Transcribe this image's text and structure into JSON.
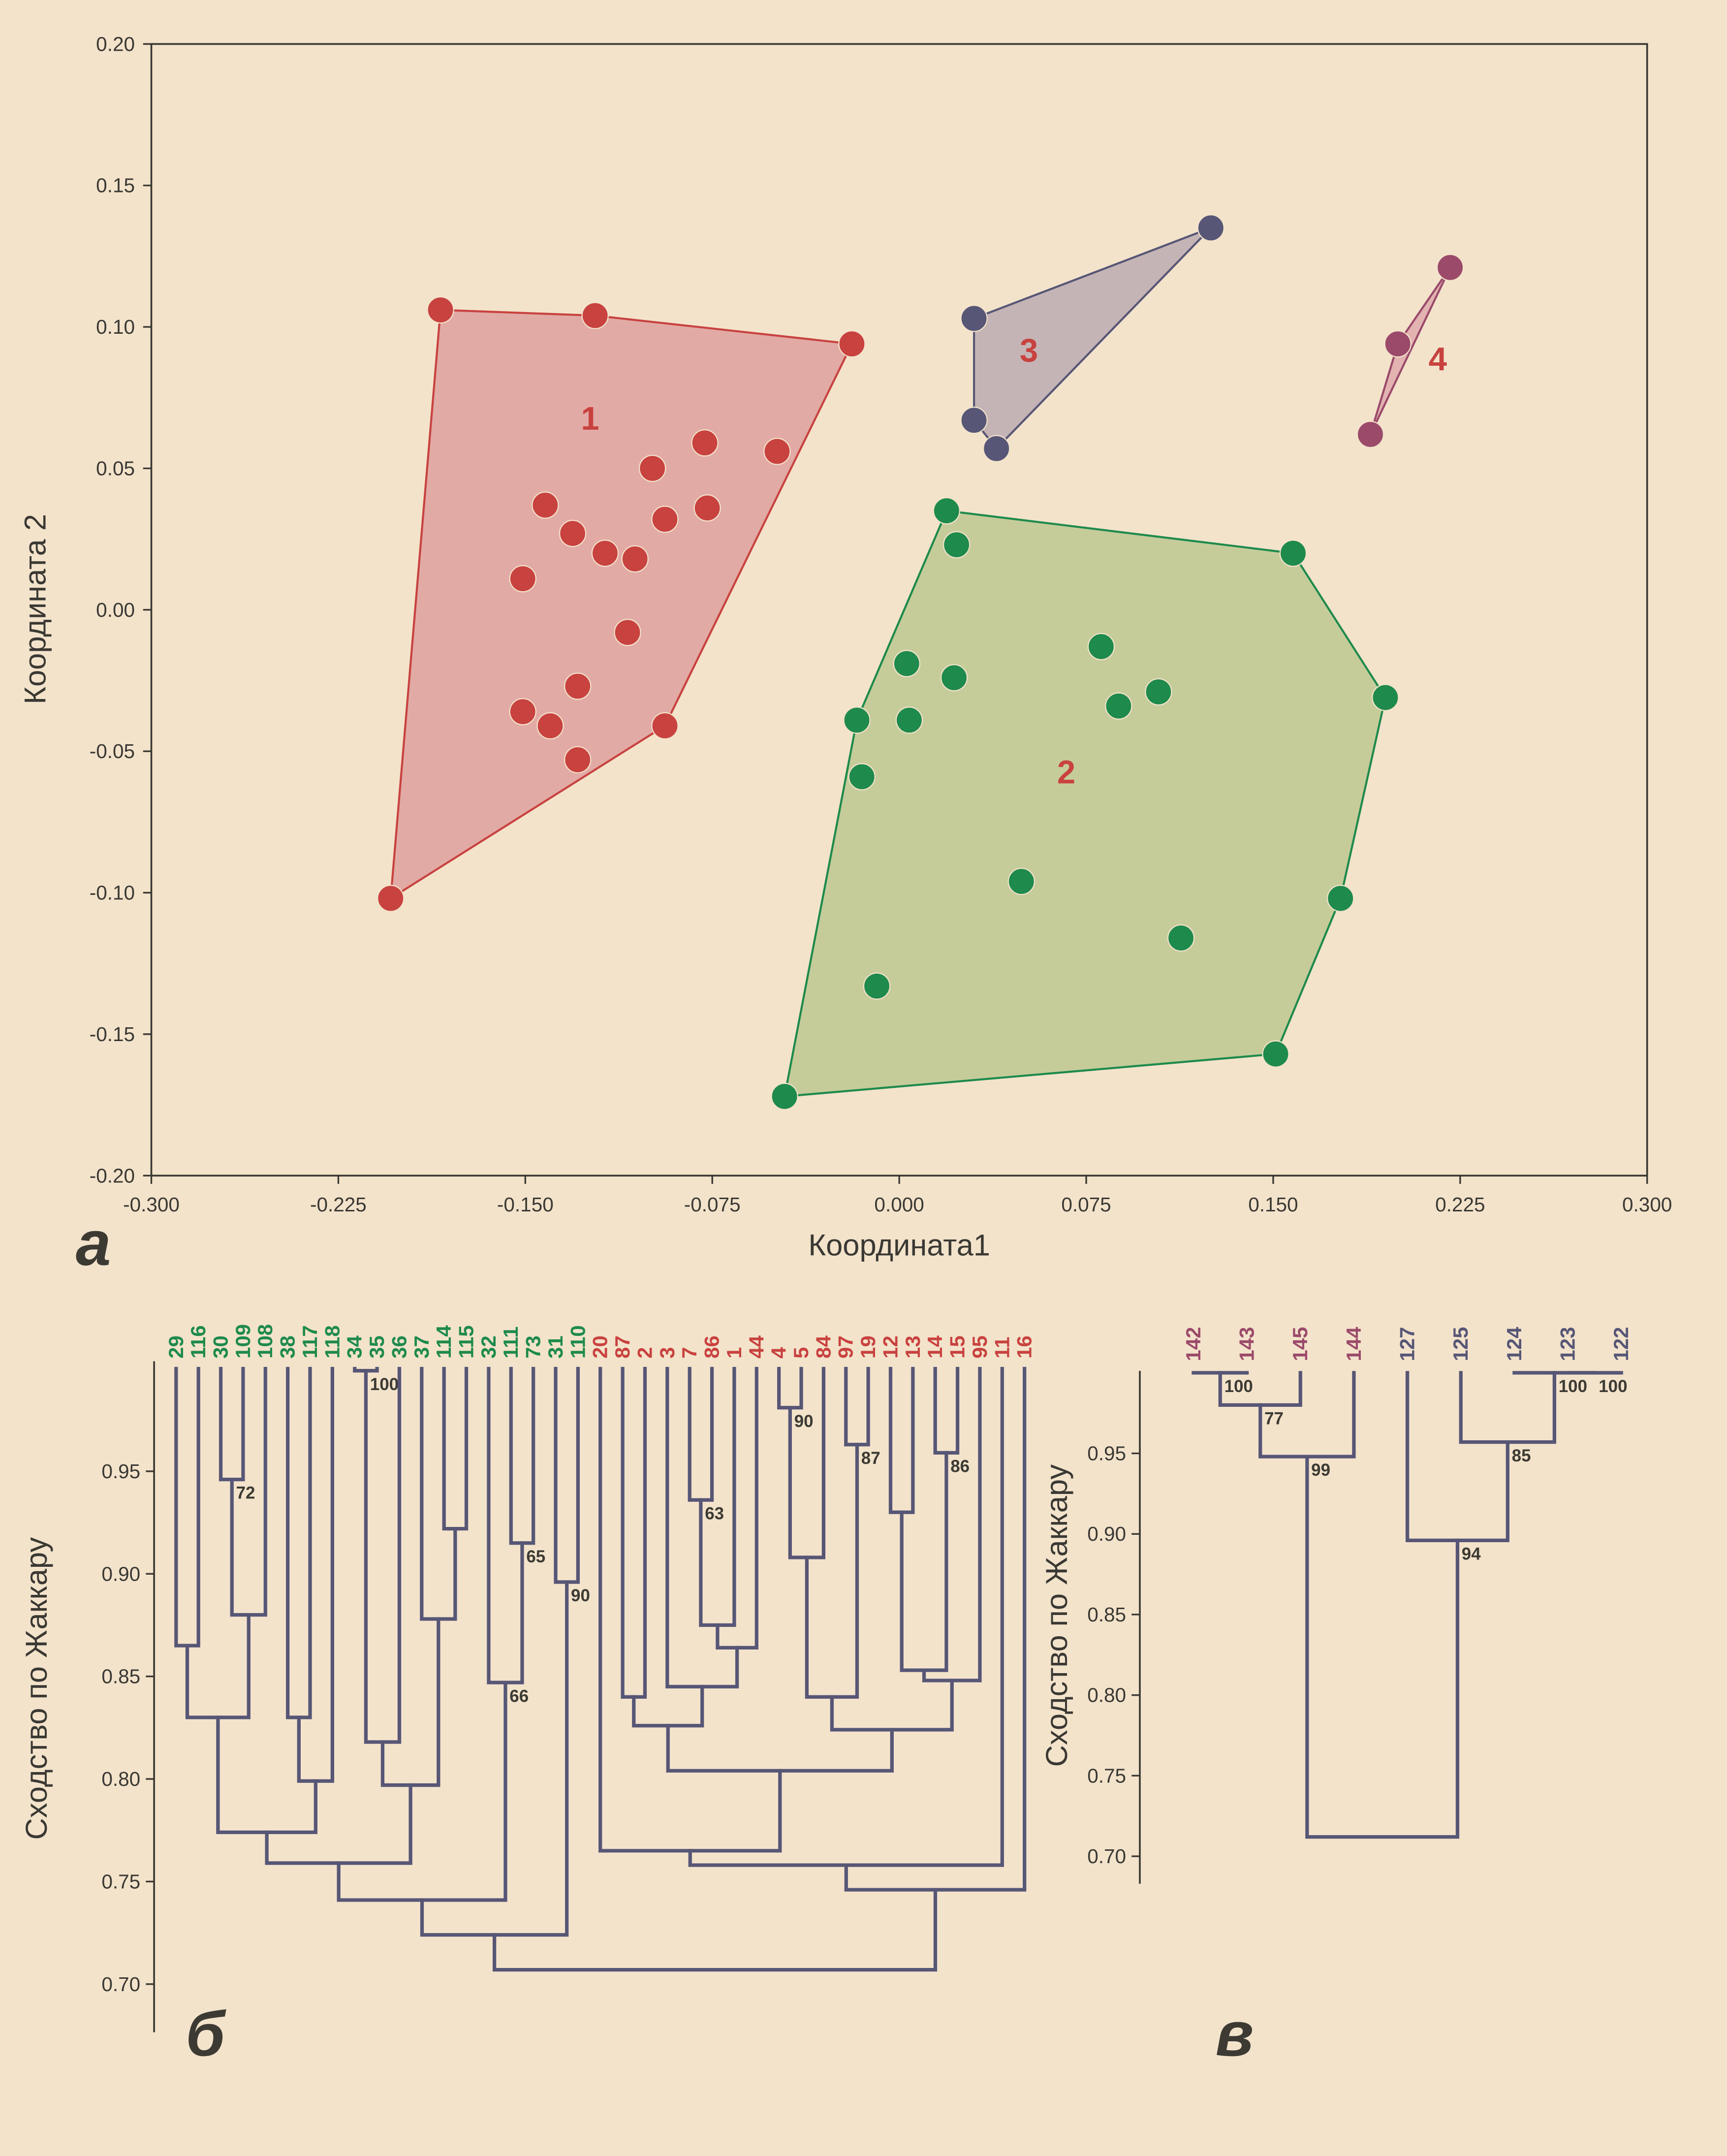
{
  "background": "#f3e3cb",
  "chart_data": [
    {
      "type": "scatter",
      "panel_label": "а",
      "xlabel": "Координата1",
      "ylabel": "Координата 2",
      "xlim": [
        -0.3,
        0.3
      ],
      "ylim": [
        -0.2,
        0.2
      ],
      "xticks": [
        "-0.300",
        "-0.225",
        "-0.150",
        "-0.075",
        "0.000",
        "0.075",
        "0.150",
        "0.225",
        "0.300"
      ],
      "yticks": [
        "0.20",
        "0.15",
        "0.10",
        "0.05",
        "0.00",
        "-0.05",
        "-0.10",
        "-0.15",
        "-0.20"
      ],
      "grid": false,
      "hulls": true,
      "series": [
        {
          "label": "1",
          "color": "#c8423f",
          "fill": "#e2aaa5",
          "label_at": [
            -0.124,
            0.068
          ],
          "points": [
            [
              -0.184,
              0.106
            ],
            [
              -0.122,
              0.104
            ],
            [
              -0.019,
              0.094
            ],
            [
              -0.204,
              -0.102
            ],
            [
              -0.078,
              0.059
            ],
            [
              -0.049,
              0.056
            ],
            [
              -0.099,
              0.05
            ],
            [
              -0.142,
              0.037
            ],
            [
              -0.077,
              0.036
            ],
            [
              -0.094,
              0.032
            ],
            [
              -0.131,
              0.027
            ],
            [
              -0.118,
              0.02
            ],
            [
              -0.106,
              0.018
            ],
            [
              -0.151,
              0.011
            ],
            [
              -0.109,
              -0.008
            ],
            [
              -0.129,
              -0.027
            ],
            [
              -0.151,
              -0.036
            ],
            [
              -0.14,
              -0.041
            ],
            [
              -0.094,
              -0.041
            ],
            [
              -0.129,
              -0.053
            ]
          ]
        },
        {
          "label": "2",
          "color": "#1e8a4c",
          "fill": "#c5cc9a",
          "label_at": [
            0.067,
            -0.057
          ],
          "points": [
            [
              0.019,
              0.035
            ],
            [
              0.023,
              0.023
            ],
            [
              0.158,
              0.02
            ],
            [
              0.195,
              -0.031
            ],
            [
              0.003,
              -0.019
            ],
            [
              0.022,
              -0.024
            ],
            [
              0.081,
              -0.013
            ],
            [
              0.104,
              -0.029
            ],
            [
              0.088,
              -0.034
            ],
            [
              -0.017,
              -0.039
            ],
            [
              0.004,
              -0.039
            ],
            [
              -0.015,
              -0.059
            ],
            [
              0.049,
              -0.096
            ],
            [
              0.177,
              -0.102
            ],
            [
              0.113,
              -0.116
            ],
            [
              -0.009,
              -0.133
            ],
            [
              0.151,
              -0.157
            ],
            [
              -0.046,
              -0.172
            ]
          ]
        },
        {
          "label": "3",
          "color": "#575676",
          "fill": "#c5b4b5",
          "label_at": [
            0.052,
            0.092
          ],
          "points": [
            [
              0.125,
              0.135
            ],
            [
              0.03,
              0.103
            ],
            [
              0.03,
              0.067
            ],
            [
              0.039,
              0.057
            ]
          ]
        },
        {
          "label": "4",
          "color": "#9b4a6a",
          "fill": "#e2b3b1",
          "label_at": [
            0.216,
            0.089
          ],
          "points": [
            [
              0.221,
              0.121
            ],
            [
              0.2,
              0.094
            ],
            [
              0.189,
              0.062
            ]
          ]
        }
      ]
    },
    {
      "type": "dendrogram",
      "panel_label": "б",
      "ylabel": "Сходство по Жаккару",
      "yticks": [
        "0.95",
        "0.90",
        "0.85",
        "0.80",
        "0.75",
        "0.70"
      ],
      "line_color": "#575676",
      "leaves": [
        {
          "label": "29",
          "color": "#1e8a4c"
        },
        {
          "label": "116",
          "color": "#1e8a4c"
        },
        {
          "label": "30",
          "color": "#1e8a4c"
        },
        {
          "label": "109",
          "color": "#1e8a4c"
        },
        {
          "label": "108",
          "color": "#1e8a4c"
        },
        {
          "label": "38",
          "color": "#1e8a4c"
        },
        {
          "label": "117",
          "color": "#1e8a4c"
        },
        {
          "label": "118",
          "color": "#1e8a4c"
        },
        {
          "label": "34",
          "color": "#1e8a4c"
        },
        {
          "label": "35",
          "color": "#1e8a4c"
        },
        {
          "label": "36",
          "color": "#1e8a4c"
        },
        {
          "label": "37",
          "color": "#1e8a4c"
        },
        {
          "label": "114",
          "color": "#1e8a4c"
        },
        {
          "label": "115",
          "color": "#1e8a4c"
        },
        {
          "label": "32",
          "color": "#1e8a4c"
        },
        {
          "label": "111",
          "color": "#1e8a4c"
        },
        {
          "label": "73",
          "color": "#1e8a4c"
        },
        {
          "label": "31",
          "color": "#1e8a4c"
        },
        {
          "label": "110",
          "color": "#1e8a4c"
        },
        {
          "label": "20",
          "color": "#c8423f"
        },
        {
          "label": "87",
          "color": "#c8423f"
        },
        {
          "label": "2",
          "color": "#c8423f"
        },
        {
          "label": "3",
          "color": "#c8423f"
        },
        {
          "label": "7",
          "color": "#c8423f"
        },
        {
          "label": "86",
          "color": "#c8423f"
        },
        {
          "label": "1",
          "color": "#c8423f"
        },
        {
          "label": "44",
          "color": "#c8423f"
        },
        {
          "label": "4",
          "color": "#c8423f"
        },
        {
          "label": "5",
          "color": "#c8423f"
        },
        {
          "label": "84",
          "color": "#c8423f"
        },
        {
          "label": "97",
          "color": "#c8423f"
        },
        {
          "label": "19",
          "color": "#c8423f"
        },
        {
          "label": "12",
          "color": "#c8423f"
        },
        {
          "label": "13",
          "color": "#c8423f"
        },
        {
          "label": "14",
          "color": "#c8423f"
        },
        {
          "label": "15",
          "color": "#c8423f"
        },
        {
          "label": "95",
          "color": "#c8423f"
        },
        {
          "label": "11",
          "color": "#c8423f"
        },
        {
          "label": "16",
          "color": "#c8423f"
        }
      ],
      "tree": {
        "s": 0.707,
        "c": [
          {
            "s": 0.724,
            "c": [
              {
                "s": 0.741,
                "c": [
                  {
                    "s": 0.759,
                    "c": [
                      {
                        "s": 0.774,
                        "c": [
                          {
                            "s": 0.83,
                            "c": [
                              {
                                "s": 0.865,
                                "c": [
                                  "29",
                                  "116"
                                ]
                              },
                              {
                                "s": 0.88,
                                "c": [
                                  {
                                    "s": 0.946,
                                    "b": "72",
                                    "c": [
                                      "30",
                                      "109"
                                    ]
                                  },
                                  "108"
                                ]
                              }
                            ]
                          },
                          {
                            "s": 0.799,
                            "c": [
                              {
                                "s": 0.83,
                                "c": [
                                  "38",
                                  "117"
                                ]
                              },
                              "118"
                            ]
                          }
                        ]
                      },
                      {
                        "s": 0.797,
                        "c": [
                          {
                            "s": 0.818,
                            "c": [
                              {
                                "s": 0.999,
                                "b": "100",
                                "c": [
                                  "34",
                                  "35"
                                ]
                              },
                              "36"
                            ]
                          },
                          {
                            "s": 0.878,
                            "c": [
                              "37",
                              {
                                "s": 0.922,
                                "c": [
                                  "114",
                                  "115"
                                ]
                              }
                            ]
                          }
                        ]
                      }
                    ]
                  },
                  {
                    "s": 0.847,
                    "b": "66",
                    "c": [
                      "32",
                      {
                        "s": 0.915,
                        "b": "65",
                        "c": [
                          "111",
                          "73"
                        ]
                      }
                    ]
                  }
                ]
              },
              {
                "s": 0.896,
                "b": "90",
                "c": [
                  "31",
                  "110"
                ]
              }
            ]
          },
          {
            "s": 0.746,
            "c": [
              {
                "s": 0.758,
                "c": [
                  {
                    "s": 0.765,
                    "c": [
                      "20",
                      {
                        "s": 0.804,
                        "c": [
                          {
                            "s": 0.826,
                            "c": [
                              {
                                "s": 0.84,
                                "c": [
                                  "87",
                                  "2"
                                ]
                              },
                              {
                                "s": 0.845,
                                "c": [
                                  "3",
                                  {
                                    "s": 0.864,
                                    "c": [
                                      {
                                        "s": 0.875,
                                        "c": [
                                          {
                                            "s": 0.936,
                                            "b": "63",
                                            "c": [
                                              "7",
                                              "86"
                                            ]
                                          },
                                          "1"
                                        ]
                                      },
                                      "44"
                                    ]
                                  }
                                ]
                              }
                            ]
                          },
                          {
                            "s": 0.824,
                            "c": [
                              {
                                "s": 0.84,
                                "c": [
                                  {
                                    "s": 0.908,
                                    "c": [
                                      {
                                        "s": 0.981,
                                        "b": "90",
                                        "c": [
                                          "4",
                                          "5"
                                        ]
                                      },
                                      "84"
                                    ]
                                  },
                                  {
                                    "s": 0.963,
                                    "b": "87",
                                    "c": [
                                      "97",
                                      "19"
                                    ]
                                  }
                                ]
                              },
                              {
                                "s": 0.848,
                                "c": [
                                  {
                                    "s": 0.853,
                                    "c": [
                                      {
                                        "s": 0.93,
                                        "c": [
                                          "12",
                                          "13"
                                        ]
                                      },
                                      {
                                        "s": 0.959,
                                        "b": "86",
                                        "c": [
                                          "14",
                                          "15"
                                        ]
                                      }
                                    ]
                                  },
                                  "95"
                                ]
                              }
                            ]
                          }
                        ]
                      }
                    ]
                  },
                  "11"
                ]
              },
              "16"
            ]
          }
        ]
      }
    },
    {
      "type": "dendrogram",
      "panel_label": "в",
      "ylabel": "Сходство по Жаккару",
      "yticks": [
        "0.95",
        "0.90",
        "0.85",
        "0.80",
        "0.75",
        "0.70"
      ],
      "line_color": "#575676",
      "leaves": [
        {
          "label": "142",
          "color": "#9b4a6a"
        },
        {
          "label": "143",
          "color": "#9b4a6a"
        },
        {
          "label": "145",
          "color": "#9b4a6a"
        },
        {
          "label": "144",
          "color": "#9b4a6a"
        },
        {
          "label": "127",
          "color": "#575676"
        },
        {
          "label": "125",
          "color": "#575676"
        },
        {
          "label": "124",
          "color": "#575676"
        },
        {
          "label": "123",
          "color": "#575676"
        },
        {
          "label": "122",
          "color": "#575676"
        }
      ],
      "tree": {
        "s": 0.712,
        "c": [
          {
            "s": 0.948,
            "b": "99",
            "c": [
              {
                "s": 0.98,
                "b": "77",
                "c": [
                  {
                    "s": 1.0,
                    "b": "100",
                    "c": [
                      "142",
                      "143"
                    ]
                  },
                  "145"
                ]
              },
              "144"
            ]
          },
          {
            "s": 0.896,
            "b": "94",
            "c": [
              "127",
              {
                "s": 0.957,
                "b": "85",
                "c": [
                  "125",
                  {
                    "s": 1.0,
                    "b": "100",
                    "c": [
                      "124",
                      {
                        "s": 1.0,
                        "b": "100",
                        "c": [
                          "123",
                          "122"
                        ]
                      }
                    ]
                  }
                ]
              }
            ]
          }
        ]
      }
    }
  ]
}
